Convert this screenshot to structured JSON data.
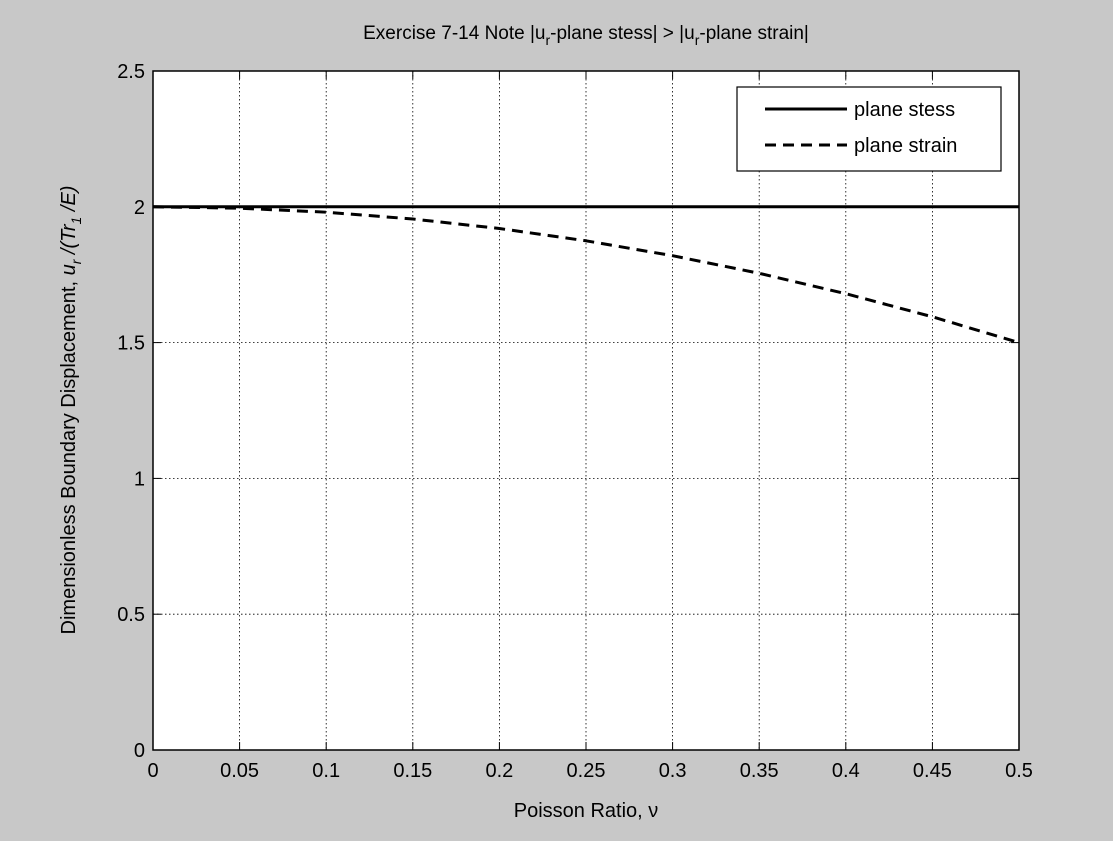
{
  "chart_data": {
    "type": "line",
    "title_parts": {
      "prefix": "Exercise 7-14 Note |u",
      "sub1": "r",
      "middle": "-plane stess| > |u",
      "sub2": "r",
      "suffix": "-plane strain|"
    },
    "xlabel": "Poisson Ratio, ν",
    "ylabel_parts": {
      "prefix": "Dimensionless Boundary Displacement, ",
      "u": "u",
      "sub_r": "r",
      "mid": " /(Tr",
      "sub_1": "1",
      "suffix": " /E)"
    },
    "xlim": [
      0,
      0.5
    ],
    "ylim": [
      0,
      2.5
    ],
    "xticks": [
      "0",
      "0.05",
      "0.1",
      "0.15",
      "0.2",
      "0.25",
      "0.3",
      "0.35",
      "0.4",
      "0.45",
      "0.5"
    ],
    "yticks": [
      "0",
      "0.5",
      "1",
      "1.5",
      "2",
      "2.5"
    ],
    "grid": true,
    "legend_position": "top-right",
    "series": [
      {
        "name": "plane stess",
        "style": "solid",
        "color": "#000000",
        "x": [
          0,
          0.05,
          0.1,
          0.15,
          0.2,
          0.25,
          0.3,
          0.35,
          0.4,
          0.45,
          0.5
        ],
        "y": [
          2,
          2,
          2,
          2,
          2,
          2,
          2,
          2,
          2,
          2,
          2
        ]
      },
      {
        "name": "plane strain",
        "style": "dashed",
        "color": "#000000",
        "x": [
          0,
          0.05,
          0.1,
          0.15,
          0.2,
          0.25,
          0.3,
          0.35,
          0.4,
          0.45,
          0.5
        ],
        "y": [
          2.0,
          1.995,
          1.98,
          1.955,
          1.92,
          1.875,
          1.82,
          1.755,
          1.68,
          1.595,
          1.5
        ]
      }
    ]
  }
}
